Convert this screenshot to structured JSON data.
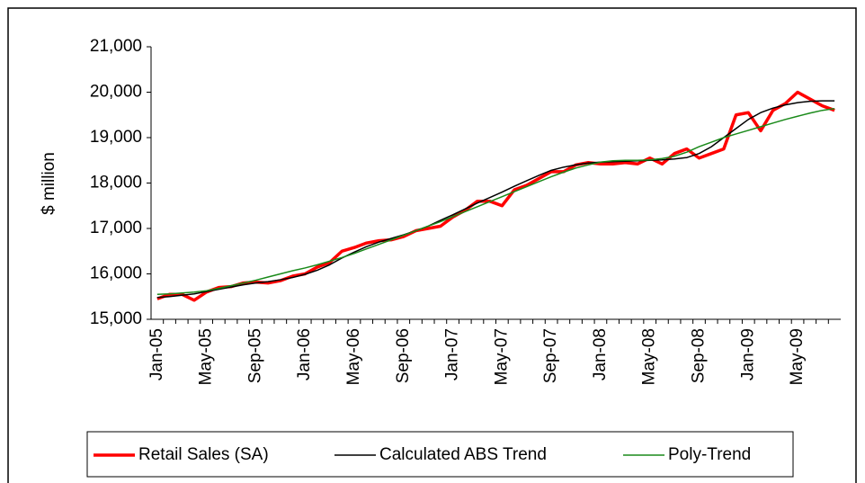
{
  "chart_data": {
    "type": "line",
    "y_label": "$ million",
    "categories": [
      "Jan-05",
      null,
      null,
      null,
      "May-05",
      null,
      null,
      null,
      "Sep-05",
      null,
      null,
      null,
      "Jan-06",
      null,
      null,
      null,
      "May-06",
      null,
      null,
      null,
      "Sep-06",
      null,
      null,
      null,
      "Jan-07",
      null,
      null,
      null,
      "May-07",
      null,
      null,
      null,
      "Sep-07",
      null,
      null,
      null,
      "Jan-08",
      null,
      null,
      null,
      "May-08",
      null,
      null,
      null,
      "Sep-08",
      null,
      null,
      null,
      "Jan-09",
      null,
      null,
      null,
      "May-09",
      null,
      null,
      null
    ],
    "series": [
      {
        "name": "Retail Sales (SA)",
        "color": "#ff0000",
        "values": [
          15450,
          15550,
          15550,
          15420,
          15600,
          15700,
          15720,
          15800,
          15820,
          15800,
          15850,
          15950,
          16000,
          16150,
          16250,
          16500,
          16580,
          16680,
          16730,
          16750,
          16820,
          16950,
          17000,
          17050,
          17250,
          17400,
          17600,
          17600,
          17500,
          17850,
          17950,
          18100,
          18250,
          18250,
          18400,
          18450,
          18420,
          18420,
          18450,
          18420,
          18550,
          18420,
          18650,
          18750,
          18550,
          18650,
          18750,
          19500,
          19550,
          19150,
          19600,
          19750,
          20000,
          19850,
          19700,
          19600
        ]
      },
      {
        "name": "Calculated ABS Trend",
        "color": "#000000",
        "values": [
          15480,
          15500,
          15530,
          15560,
          15610,
          15660,
          15710,
          15760,
          15800,
          15830,
          15870,
          15920,
          15990,
          16080,
          16200,
          16350,
          16480,
          16600,
          16700,
          16780,
          16860,
          16950,
          17050,
          17180,
          17300,
          17430,
          17560,
          17680,
          17800,
          17930,
          18050,
          18170,
          18280,
          18350,
          18400,
          18440,
          18460,
          18470,
          18480,
          18490,
          18500,
          18510,
          18530,
          18560,
          18650,
          18800,
          19000,
          19200,
          19400,
          19550,
          19650,
          19720,
          19770,
          19800,
          19810,
          19810
        ]
      },
      {
        "name": "Poly-Trend",
        "color": "#1a8a1a",
        "values": [
          15550,
          15560,
          15580,
          15600,
          15630,
          15680,
          15740,
          15800,
          15860,
          15930,
          16000,
          16070,
          16130,
          16200,
          16280,
          16360,
          16450,
          16550,
          16650,
          16750,
          16850,
          16950,
          17050,
          17150,
          17260,
          17370,
          17480,
          17590,
          17700,
          17810,
          17920,
          18030,
          18140,
          18240,
          18330,
          18400,
          18460,
          18490,
          18500,
          18500,
          18510,
          18540,
          18590,
          18680,
          18800,
          18900,
          19000,
          19080,
          19160,
          19240,
          19320,
          19400,
          19470,
          19540,
          19600,
          19640
        ]
      }
    ],
    "ylim": [
      15000,
      21000
    ],
    "yticks": [
      {
        "value": 15000,
        "label": "15,000"
      },
      {
        "value": 16000,
        "label": "16,000"
      },
      {
        "value": 17000,
        "label": "17,000"
      },
      {
        "value": 18000,
        "label": "18,000"
      },
      {
        "value": 19000,
        "label": "19,000"
      },
      {
        "value": 20000,
        "label": "20,000"
      },
      {
        "value": 21000,
        "label": "21,000"
      }
    ],
    "legend": "bottom"
  }
}
